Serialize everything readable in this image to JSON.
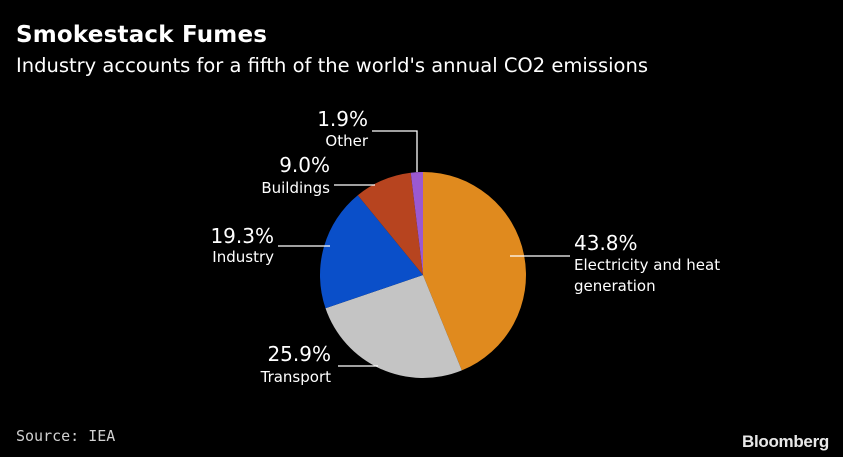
{
  "header": {
    "title": "Smokestack Fumes",
    "subtitle": "Industry accounts for a fifth of the world's annual CO2 emissions"
  },
  "footer": {
    "source": "Source: IEA",
    "brand": "Bloomberg"
  },
  "chart_data": {
    "type": "pie",
    "title": "Smokestack Fumes",
    "subtitle": "Industry accounts for a fifth of the world's annual CO2 emissions",
    "start": "12 o'clock, clockwise",
    "slices": [
      {
        "key": "electricity",
        "label": "Electricity and heat generation",
        "lines": [
          "Electricity and heat",
          "generation"
        ],
        "value": 43.8,
        "display": "43.8%",
        "color": "#E08A1E"
      },
      {
        "key": "transport",
        "label": "Transport",
        "lines": [
          "Transport"
        ],
        "value": 25.9,
        "display": "25.9%",
        "color": "#C4C4C4"
      },
      {
        "key": "industry",
        "label": "Industry",
        "lines": [
          "Industry"
        ],
        "value": 19.3,
        "display": "19.3%",
        "color": "#0A4FC9"
      },
      {
        "key": "buildings",
        "label": "Buildings",
        "lines": [
          "Buildings"
        ],
        "value": 9.0,
        "display": "9.0%",
        "color": "#B7441F"
      },
      {
        "key": "other",
        "label": "Other",
        "lines": [
          "Other"
        ],
        "value": 1.9,
        "display": "1.9%",
        "color": "#9B59D0"
      }
    ]
  }
}
